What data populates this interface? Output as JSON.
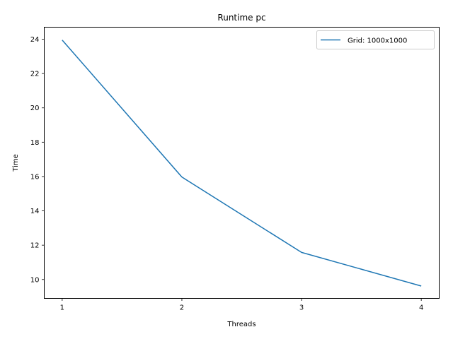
{
  "chart_data": {
    "type": "line",
    "title": "Runtime pc",
    "xlabel": "Threads",
    "ylabel": "Time",
    "x": [
      1,
      2,
      3,
      4
    ],
    "xticks": [
      "1",
      "2",
      "3",
      "4"
    ],
    "yticks": [
      "10",
      "12",
      "14",
      "16",
      "18",
      "20",
      "22",
      "24"
    ],
    "xlim": [
      0.85,
      4.15
    ],
    "ylim": [
      8.9,
      24.7
    ],
    "grid": false,
    "legend_position": "top-right",
    "series": [
      {
        "name": "Grid: 1000x1000",
        "color": "#1f77b4",
        "values": [
          23.95,
          15.97,
          11.58,
          9.62
        ]
      }
    ]
  }
}
